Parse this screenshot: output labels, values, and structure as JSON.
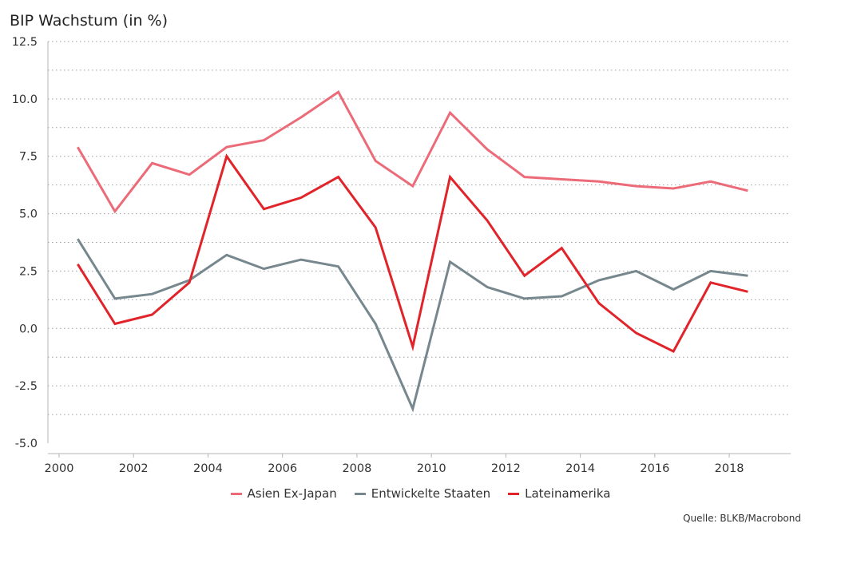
{
  "chart_data": {
    "type": "line",
    "title": "BIP Wachstum (in %)",
    "xlabel": "",
    "ylabel": "",
    "xlim": [
      1999.7,
      2019.65
    ],
    "ylim": [
      -5.0,
      12.5
    ],
    "yticks": [
      "12.5",
      "10.0",
      "7.5",
      "5.0",
      "2.5",
      "0.0",
      "-2.5",
      "-5.0"
    ],
    "ytick_values": [
      12.5,
      10.0,
      7.5,
      5.0,
      2.5,
      0.0,
      -2.5,
      -5.0
    ],
    "xticks": [
      "2000",
      "2002",
      "2004",
      "2006",
      "2008",
      "2010",
      "2012",
      "2014",
      "2016",
      "2018"
    ],
    "xtick_values": [
      2000,
      2002,
      2004,
      2006,
      2008,
      2010,
      2012,
      2014,
      2016,
      2018
    ],
    "grid": true,
    "legend_position": "bottom",
    "x": [
      2000.5,
      2001.5,
      2002.5,
      2003.5,
      2004.5,
      2005.5,
      2006.5,
      2007.5,
      2008.5,
      2009.5,
      2010.5,
      2011.5,
      2012.5,
      2013.5,
      2014.5,
      2015.5,
      2016.5,
      2017.5,
      2018.5
    ],
    "series": [
      {
        "name": "Asien Ex-Japan",
        "color": "#ec6b78",
        "values": [
          7.9,
          5.1,
          7.2,
          6.7,
          7.9,
          8.2,
          9.2,
          10.3,
          7.3,
          6.2,
          9.4,
          7.8,
          6.6,
          6.5,
          6.4,
          6.2,
          6.1,
          6.4,
          6.0
        ]
      },
      {
        "name": "Entwickelte Staaten",
        "color": "#77878e",
        "values": [
          3.9,
          1.3,
          1.5,
          2.1,
          3.2,
          2.6,
          3.0,
          2.7,
          0.2,
          -3.5,
          2.9,
          1.8,
          1.3,
          1.4,
          2.1,
          2.5,
          1.7,
          2.5,
          2.3
        ]
      },
      {
        "name": "Lateinamerika",
        "color": "#e0242a",
        "values": [
          2.8,
          0.2,
          0.6,
          2.0,
          7.5,
          5.2,
          5.7,
          6.6,
          4.4,
          -0.8,
          6.6,
          4.7,
          2.3,
          3.5,
          1.1,
          -0.2,
          -1.0,
          2.0,
          1.6
        ]
      }
    ]
  },
  "source": "Quelle: BLKB/Macrobond"
}
